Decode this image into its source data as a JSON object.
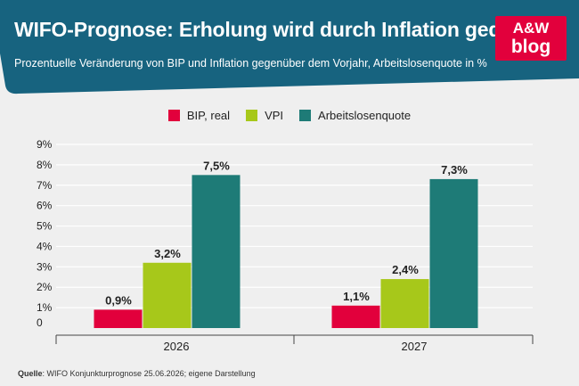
{
  "header": {
    "title": "WIFO-Prognose: Erholung wird durch Inflation gedämpft",
    "subtitle": "Prozentuelle Veränderung von BIP und Inflation gegenüber dem Vorjahr, Arbeitslosenquote in %",
    "logo_top": "A&W",
    "logo_bottom": "blog"
  },
  "colors": {
    "header_bg": "#17637f",
    "page_bg": "#efefef",
    "bip": "#e2003c",
    "vpi": "#a7c81a",
    "alq": "#1e7b77",
    "logo_bg": "#e2003c"
  },
  "source": {
    "label": "Quelle",
    "text": ": WIFO Konjunkturprognose 25.06.2026; eigene Darstellung"
  },
  "chart_data": {
    "type": "bar",
    "categories": [
      "2026",
      "2027"
    ],
    "series": [
      {
        "name": "BIP, real",
        "values": [
          0.9,
          1.1
        ],
        "labels": [
          "0,9%",
          "1,1%"
        ]
      },
      {
        "name": "VPI",
        "values": [
          3.2,
          2.4
        ],
        "labels": [
          "3,2%",
          "2,4%"
        ]
      },
      {
        "name": "Arbeitslosenquote",
        "values": [
          7.5,
          7.3
        ],
        "labels": [
          "7,5%",
          "7,3%"
        ]
      }
    ],
    "ylim": [
      0,
      9
    ],
    "yticks": [
      "0",
      "1%",
      "2%",
      "3%",
      "4%",
      "5%",
      "6%",
      "7%",
      "8%",
      "9%"
    ],
    "grid": true,
    "legend": "top-center"
  }
}
